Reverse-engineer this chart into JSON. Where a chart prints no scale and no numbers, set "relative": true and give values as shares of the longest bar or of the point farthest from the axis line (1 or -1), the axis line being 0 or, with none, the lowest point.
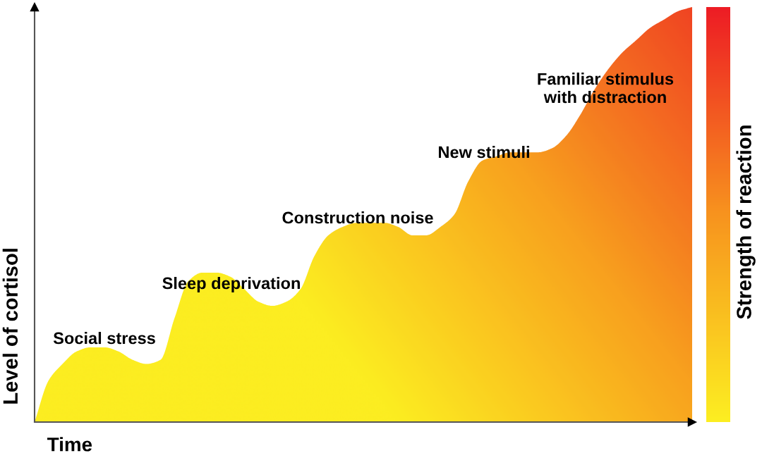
{
  "chart_data": {
    "type": "area",
    "relative": true,
    "xlabel": "Time",
    "ylabel": "Level of cortisol",
    "clabel": "Strength of reaction",
    "colors": [
      "#fcee21",
      "#f7931e",
      "#ed1c24"
    ],
    "categories": [
      null,
      null,
      null,
      null,
      null,
      null,
      null,
      null,
      null,
      null,
      null,
      null,
      null,
      null,
      null,
      null,
      null,
      null,
      null,
      null,
      null,
      null,
      null,
      null,
      null,
      null,
      null,
      null,
      null,
      null,
      null,
      null,
      null,
      null,
      null,
      null,
      null,
      null,
      null,
      null,
      null,
      null,
      null,
      null,
      null,
      null,
      null,
      null
    ],
    "series": [
      {
        "color": "#fcee21",
        "values": [
          0.0,
          0.1,
          0.14,
          0.17,
          0.18,
          0.18,
          0.17,
          0.15,
          0.14,
          0.15,
          0.25,
          0.34,
          0.36,
          0.36,
          0.35,
          0.32,
          0.29,
          0.28,
          0.29,
          0.32,
          0.4,
          0.45,
          0.47,
          0.48,
          0.48,
          0.48,
          0.47,
          0.45,
          0.45,
          0.47,
          0.5,
          0.58,
          0.63,
          0.64,
          0.65,
          0.65,
          0.65,
          0.66,
          0.69,
          0.74,
          0.8,
          0.85,
          0.89,
          0.92,
          0.95,
          0.97,
          0.99,
          1.0
        ]
      }
    ],
    "annotations": [
      "Social stress",
      "Sleep deprivation",
      "Construction noise",
      "New stimuli",
      "Familiar stimulus\nwith distraction"
    ]
  }
}
